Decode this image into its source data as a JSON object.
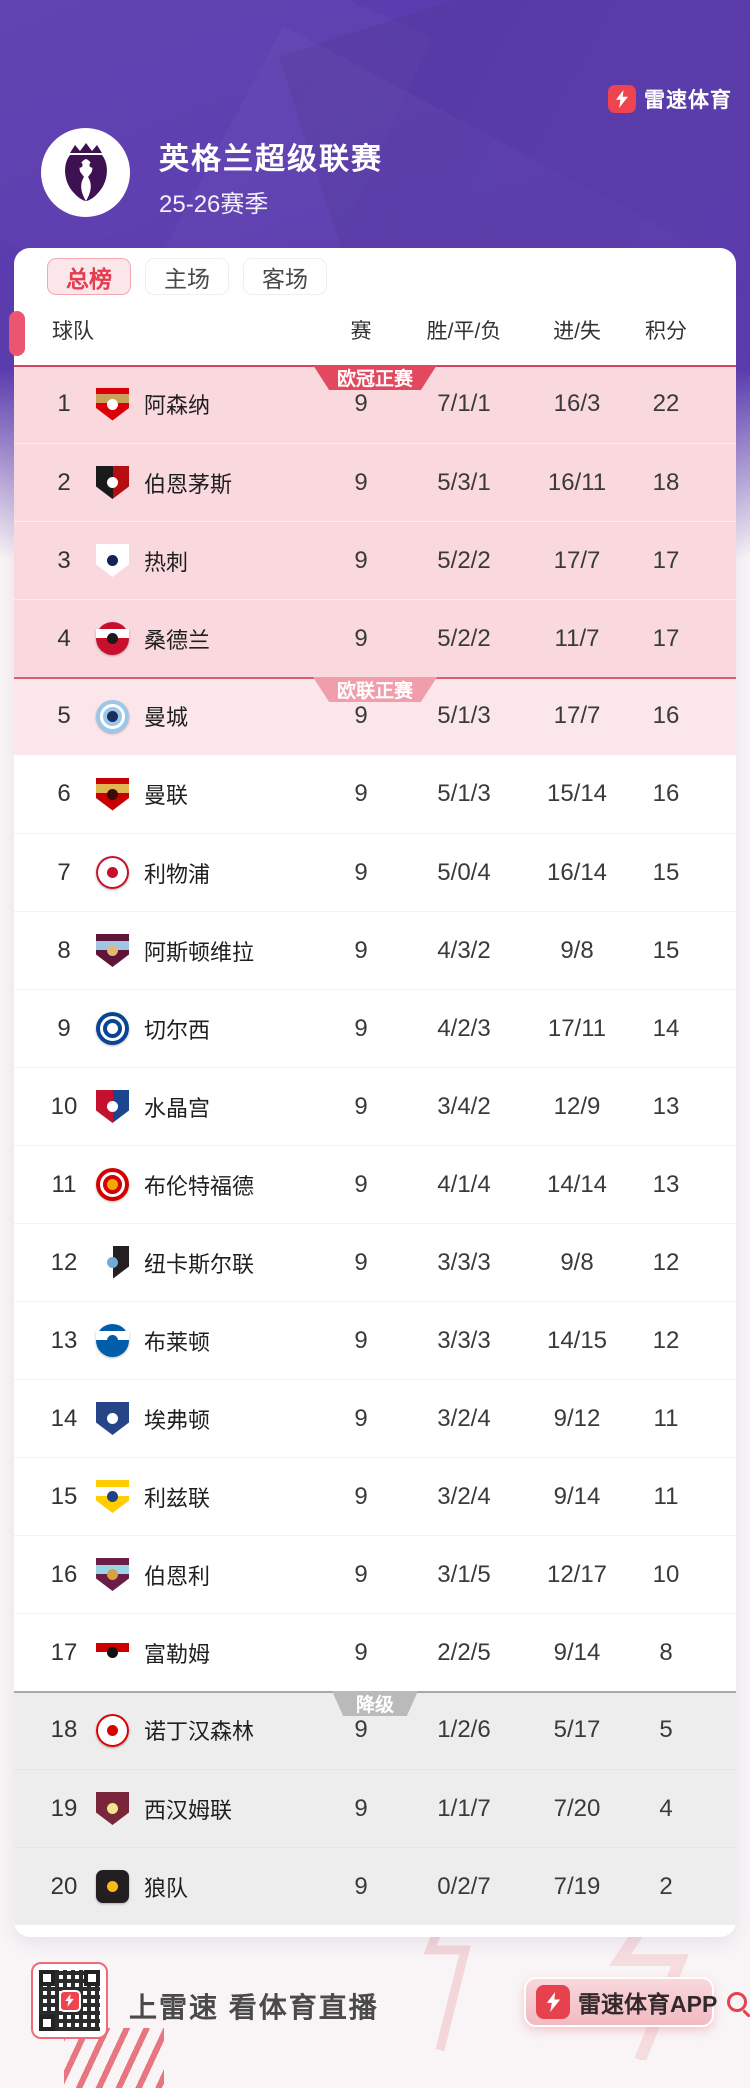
{
  "brand": {
    "name": "雷速体育"
  },
  "header": {
    "league": "英格兰超级联赛",
    "season": "25-26赛季"
  },
  "tabs": [
    {
      "id": "total",
      "label": "总榜",
      "active": true
    },
    {
      "id": "home",
      "label": "主场",
      "active": false
    },
    {
      "id": "away",
      "label": "客场",
      "active": false
    }
  ],
  "table": {
    "columns": [
      "球队",
      "赛",
      "胜/平/负",
      "进/失",
      "积分"
    ]
  },
  "zones": [
    {
      "id": "cl",
      "label": "欧冠正赛",
      "banner_color": "#E2495F",
      "bg": "#F9D9DE",
      "line": "#D64360",
      "from": 1,
      "to": 4
    },
    {
      "id": "el",
      "label": "欧联正赛",
      "banner_color": "#F09EAB",
      "bg": "#FBE6EA",
      "line": "#DA5E73",
      "from": 5,
      "to": 5
    },
    {
      "id": "mid",
      "label": "",
      "banner_color": "",
      "bg": "#FFFFFF",
      "line": "",
      "from": 6,
      "to": 17
    },
    {
      "id": "rel",
      "label": "降级",
      "banner_color": "#BABABA",
      "bg": "#EDEDED",
      "line": "#A8A8A8",
      "from": 18,
      "to": 20
    }
  ],
  "teams": [
    {
      "rank": 1,
      "id": "arsenal",
      "name": "阿森纳",
      "played": "9",
      "wdl": "7/1/1",
      "goals": "16/3",
      "points": "22",
      "crest": {
        "shape": "shield",
        "variant": "band",
        "primary": "#DB0007",
        "secondary": "#C9A35A",
        "accent": "#FFFFFF",
        "border": ""
      }
    },
    {
      "rank": 2,
      "id": "bournemouth",
      "name": "伯恩茅斯",
      "played": "9",
      "wdl": "5/3/1",
      "goals": "16/11",
      "points": "18",
      "crest": {
        "shape": "shield",
        "variant": "half",
        "primary": "#B50E12",
        "secondary": "#1A1A1A",
        "accent": "#FFFFFF",
        "border": ""
      }
    },
    {
      "rank": 3,
      "id": "tottenham",
      "name": "热刺",
      "played": "9",
      "wdl": "5/2/2",
      "goals": "17/7",
      "points": "17",
      "crest": {
        "shape": "shield",
        "variant": "plain",
        "primary": "#FFFFFF",
        "secondary": "",
        "accent": "#132257",
        "border": ""
      }
    },
    {
      "rank": 4,
      "id": "sunderland",
      "name": "桑德兰",
      "played": "9",
      "wdl": "5/2/2",
      "goals": "11/7",
      "points": "17",
      "crest": {
        "shape": "circle",
        "variant": "band",
        "primary": "#C8102E",
        "secondary": "#FFFFFF",
        "accent": "#1A1A1A",
        "border": ""
      }
    },
    {
      "rank": 5,
      "id": "man-city",
      "name": "曼城",
      "played": "9",
      "wdl": "5/1/3",
      "goals": "17/7",
      "points": "16",
      "crest": {
        "shape": "circle",
        "variant": "ring",
        "primary": "#9BC7E9",
        "secondary": "#FFFFFF",
        "accent": "#1C2C5B",
        "border": ""
      }
    },
    {
      "rank": 6,
      "id": "man-united",
      "name": "曼联",
      "played": "9",
      "wdl": "5/1/3",
      "goals": "15/14",
      "points": "16",
      "crest": {
        "shape": "shield",
        "variant": "band",
        "primary": "#C70101",
        "secondary": "#E0B653",
        "accent": "#3B0A0A",
        "border": ""
      }
    },
    {
      "rank": 7,
      "id": "liverpool",
      "name": "利物浦",
      "played": "9",
      "wdl": "5/0/4",
      "goals": "16/14",
      "points": "15",
      "crest": {
        "shape": "circle",
        "variant": "plain",
        "primary": "#FFFFFF",
        "secondary": "",
        "accent": "#C8102E",
        "border": "#C8102E"
      }
    },
    {
      "rank": 8,
      "id": "aston-villa",
      "name": "阿斯顿维拉",
      "played": "9",
      "wdl": "4/3/2",
      "goals": "9/8",
      "points": "15",
      "crest": {
        "shape": "shield",
        "variant": "band",
        "primary": "#5E1537",
        "secondary": "#9EC7E6",
        "accent": "#E3B873",
        "border": ""
      }
    },
    {
      "rank": 9,
      "id": "chelsea",
      "name": "切尔西",
      "played": "9",
      "wdl": "4/2/3",
      "goals": "17/11",
      "points": "14",
      "crest": {
        "shape": "circle",
        "variant": "ring",
        "primary": "#0A4595",
        "secondary": "#FFFFFF",
        "accent": "#FFFFFF",
        "border": ""
      }
    },
    {
      "rank": 10,
      "id": "crystal-palace",
      "name": "水晶宫",
      "played": "9",
      "wdl": "3/4/2",
      "goals": "12/9",
      "points": "13",
      "crest": {
        "shape": "shield",
        "variant": "half",
        "primary": "#1B458F",
        "secondary": "#C4122E",
        "accent": "#FFFFFF",
        "border": ""
      }
    },
    {
      "rank": 11,
      "id": "brentford",
      "name": "布伦特福德",
      "played": "9",
      "wdl": "4/1/4",
      "goals": "14/14",
      "points": "13",
      "crest": {
        "shape": "circle",
        "variant": "ring",
        "primary": "#D20000",
        "secondary": "#FFFFFF",
        "accent": "#F2A900",
        "border": ""
      }
    },
    {
      "rank": 12,
      "id": "newcastle",
      "name": "纽卡斯尔联",
      "played": "9",
      "wdl": "3/3/3",
      "goals": "9/8",
      "points": "12",
      "crest": {
        "shape": "shield",
        "variant": "half",
        "primary": "#241F20",
        "secondary": "#FFFFFF",
        "accent": "#6CABDD",
        "border": ""
      }
    },
    {
      "rank": 13,
      "id": "brighton",
      "name": "布莱顿",
      "played": "9",
      "wdl": "3/3/3",
      "goals": "14/15",
      "points": "12",
      "crest": {
        "shape": "circle",
        "variant": "band",
        "primary": "#005DAA",
        "secondary": "#FFFFFF",
        "accent": "#005DAA",
        "border": ""
      }
    },
    {
      "rank": 14,
      "id": "everton",
      "name": "埃弗顿",
      "played": "9",
      "wdl": "3/2/4",
      "goals": "9/12",
      "points": "11",
      "crest": {
        "shape": "shield",
        "variant": "plain",
        "primary": "#274488",
        "secondary": "",
        "accent": "#FFFFFF",
        "border": ""
      }
    },
    {
      "rank": 15,
      "id": "leeds",
      "name": "利兹联",
      "played": "9",
      "wdl": "3/2/4",
      "goals": "9/14",
      "points": "11",
      "crest": {
        "shape": "shield",
        "variant": "band",
        "primary": "#FFCD00",
        "secondary": "#FFFFFF",
        "accent": "#1D428A",
        "border": ""
      }
    },
    {
      "rank": 16,
      "id": "burnley",
      "name": "伯恩利",
      "played": "9",
      "wdl": "3/1/5",
      "goals": "12/17",
      "points": "10",
      "crest": {
        "shape": "shield",
        "variant": "band",
        "primary": "#6C1D45",
        "secondary": "#99D6EA",
        "accent": "#D8A23E",
        "border": ""
      }
    },
    {
      "rank": 17,
      "id": "fulham",
      "name": "富勒姆",
      "played": "9",
      "wdl": "2/2/5",
      "goals": "9/14",
      "points": "8",
      "crest": {
        "shape": "shield",
        "variant": "band",
        "primary": "#FFFFFF",
        "secondary": "#CC0000",
        "accent": "#111111",
        "border": ""
      }
    },
    {
      "rank": 18,
      "id": "nottingham-forest",
      "name": "诺丁汉森林",
      "played": "9",
      "wdl": "1/2/6",
      "goals": "5/17",
      "points": "5",
      "crest": {
        "shape": "circle",
        "variant": "plain",
        "primary": "#FFFFFF",
        "secondary": "",
        "accent": "#DD0000",
        "border": "#DD0000"
      }
    },
    {
      "rank": 19,
      "id": "west-ham",
      "name": "西汉姆联",
      "played": "9",
      "wdl": "1/1/7",
      "goals": "7/20",
      "points": "4",
      "crest": {
        "shape": "shield",
        "variant": "plain",
        "primary": "#7A263A",
        "secondary": "",
        "accent": "#F0E68C",
        "border": ""
      }
    },
    {
      "rank": 20,
      "id": "wolves",
      "name": "狼队",
      "played": "9",
      "wdl": "0/2/7",
      "goals": "7/19",
      "points": "2",
      "crest": {
        "shape": "square",
        "variant": "plain",
        "primary": "#231F20",
        "secondary": "",
        "accent": "#FDB913",
        "border": ""
      }
    }
  ],
  "footer": {
    "slogan": "上雷速 看体育直播",
    "app_button": "雷速体育APP"
  },
  "colors": {
    "accent_red": "#E23D50",
    "hero_purple": "#5C3DAF",
    "active_tab_bg": "#FBE6E9",
    "bookmark": "#EC5570"
  }
}
